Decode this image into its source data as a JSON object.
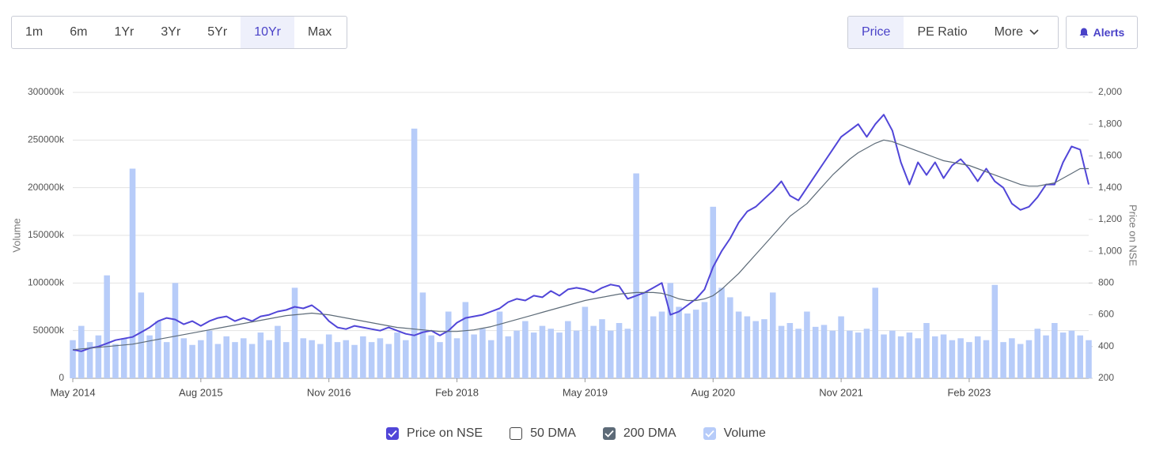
{
  "controls": {
    "ranges": [
      "1m",
      "6m",
      "1Yr",
      "3Yr",
      "5Yr",
      "10Yr",
      "Max"
    ],
    "active_range": "10Yr",
    "views": [
      "Price",
      "PE Ratio",
      "More"
    ],
    "active_view": "Price",
    "alerts": "Alerts"
  },
  "chart_data": {
    "type": "line",
    "ylabel": "Volume",
    "y2label": "Price on NSE",
    "x": [
      "2014-05",
      "2014-06",
      "2014-07",
      "2014-08",
      "2014-09",
      "2014-10",
      "2014-11",
      "2014-12",
      "2015-01",
      "2015-02",
      "2015-03",
      "2015-04",
      "2015-05",
      "2015-06",
      "2015-07",
      "2015-08",
      "2015-09",
      "2015-10",
      "2015-11",
      "2015-12",
      "2016-01",
      "2016-02",
      "2016-03",
      "2016-04",
      "2016-05",
      "2016-06",
      "2016-07",
      "2016-08",
      "2016-09",
      "2016-10",
      "2016-11",
      "2016-12",
      "2017-01",
      "2017-02",
      "2017-03",
      "2017-04",
      "2017-05",
      "2017-06",
      "2017-07",
      "2017-08",
      "2017-09",
      "2017-10",
      "2017-11",
      "2017-12",
      "2018-01",
      "2018-02",
      "2018-03",
      "2018-04",
      "2018-05",
      "2018-06",
      "2018-07",
      "2018-08",
      "2018-09",
      "2018-10",
      "2018-11",
      "2018-12",
      "2019-01",
      "2019-02",
      "2019-03",
      "2019-04",
      "2019-05",
      "2019-06",
      "2019-07",
      "2019-08",
      "2019-09",
      "2019-10",
      "2019-11",
      "2019-12",
      "2020-01",
      "2020-02",
      "2020-03",
      "2020-04",
      "2020-05",
      "2020-06",
      "2020-07",
      "2020-08",
      "2020-09",
      "2020-10",
      "2020-11",
      "2020-12",
      "2021-01",
      "2021-02",
      "2021-03",
      "2021-04",
      "2021-05",
      "2021-06",
      "2021-07",
      "2021-08",
      "2021-09",
      "2021-10",
      "2021-11",
      "2021-12",
      "2022-01",
      "2022-02",
      "2022-03",
      "2022-04",
      "2022-05",
      "2022-06",
      "2022-07",
      "2022-08",
      "2022-09",
      "2022-10",
      "2022-11",
      "2022-12",
      "2023-01",
      "2023-02",
      "2023-03",
      "2023-04",
      "2023-05",
      "2023-06",
      "2023-07",
      "2023-08",
      "2023-09",
      "2023-10",
      "2023-11",
      "2023-12",
      "2024-01",
      "2024-02",
      "2024-03",
      "2024-04"
    ],
    "xlim": [
      "2014-05",
      "2024-04"
    ],
    "xticks": [
      {
        "value": "2014-05",
        "label": "May 2014"
      },
      {
        "value": "2015-08",
        "label": "Aug 2015"
      },
      {
        "value": "2016-11",
        "label": "Nov 2016"
      },
      {
        "value": "2018-02",
        "label": "Feb 2018"
      },
      {
        "value": "2019-05",
        "label": "May 2019"
      },
      {
        "value": "2020-08",
        "label": "Aug 2020"
      },
      {
        "value": "2021-11",
        "label": "Nov 2021"
      },
      {
        "value": "2023-02",
        "label": "Feb 2023"
      }
    ],
    "ylim": [
      0,
      300000
    ],
    "yticks": [
      0,
      {
        "value": 50000,
        "label": "50000k"
      },
      {
        "value": 100000,
        "label": "100000k"
      },
      {
        "value": 150000,
        "label": "150000k"
      },
      {
        "value": 200000,
        "label": "200000k"
      },
      {
        "value": 250000,
        "label": "250000k"
      },
      {
        "value": 300000,
        "label": "300000k"
      }
    ],
    "y2lim": [
      200,
      2000
    ],
    "y2ticks": [
      200,
      400,
      600,
      800,
      {
        "value": 1000,
        "label": "1,000"
      },
      {
        "value": 1200,
        "label": "1,200"
      },
      {
        "value": 1400,
        "label": "1,400"
      },
      {
        "value": 1600,
        "label": "1,600"
      },
      {
        "value": 1800,
        "label": "1,800"
      },
      {
        "value": 2000,
        "label": "2,000"
      }
    ],
    "grid": true,
    "series": [
      {
        "name": "Price on NSE",
        "color": "#5146d8",
        "checked": true,
        "axis": "y2",
        "values": [
          380,
          370,
          390,
          400,
          420,
          440,
          450,
          460,
          490,
          520,
          560,
          580,
          570,
          540,
          560,
          530,
          560,
          580,
          590,
          560,
          580,
          560,
          590,
          600,
          620,
          630,
          650,
          640,
          660,
          620,
          560,
          520,
          510,
          530,
          520,
          510,
          500,
          520,
          500,
          480,
          470,
          490,
          500,
          470,
          500,
          550,
          580,
          590,
          600,
          620,
          640,
          680,
          700,
          690,
          720,
          710,
          750,
          720,
          760,
          770,
          760,
          740,
          770,
          790,
          780,
          700,
          720,
          740,
          770,
          800,
          600,
          620,
          660,
          700,
          760,
          900,
          1000,
          1080,
          1180,
          1250,
          1280,
          1330,
          1380,
          1440,
          1350,
          1320,
          1400,
          1480,
          1560,
          1640,
          1720,
          1760,
          1800,
          1720,
          1800,
          1860,
          1760,
          1560,
          1420,
          1560,
          1480,
          1560,
          1460,
          1540,
          1580,
          1520,
          1440,
          1520,
          1440,
          1400,
          1300,
          1260,
          1280,
          1340,
          1420,
          1420,
          1560,
          1660,
          1640,
          1420
        ]
      },
      {
        "name": "50 DMA",
        "color": "#9a8a6a",
        "checked": false
      },
      {
        "name": "200 DMA",
        "color": "#5d6b78",
        "checked": true,
        "axis": "y2",
        "values": [
          380,
          385,
          390,
          395,
          400,
          405,
          410,
          415,
          425,
          435,
          445,
          455,
          465,
          475,
          485,
          495,
          505,
          515,
          525,
          535,
          545,
          555,
          565,
          575,
          585,
          595,
          600,
          605,
          610,
          605,
          600,
          590,
          580,
          570,
          560,
          550,
          540,
          530,
          520,
          515,
          510,
          505,
          500,
          495,
          495,
          495,
          500,
          505,
          515,
          525,
          540,
          555,
          570,
          585,
          600,
          615,
          630,
          645,
          660,
          675,
          690,
          700,
          710,
          720,
          730,
          735,
          740,
          740,
          740,
          735,
          720,
          700,
          690,
          690,
          700,
          720,
          760,
          810,
          860,
          920,
          980,
          1040,
          1100,
          1160,
          1220,
          1260,
          1300,
          1360,
          1420,
          1480,
          1530,
          1580,
          1620,
          1650,
          1680,
          1700,
          1690,
          1670,
          1650,
          1630,
          1610,
          1590,
          1570,
          1560,
          1550,
          1540,
          1520,
          1500,
          1480,
          1460,
          1440,
          1420,
          1410,
          1410,
          1420,
          1430,
          1460,
          1490,
          1520,
          1520
        ]
      },
      {
        "name": "Volume",
        "color": "#b7ccf9",
        "checked": true,
        "type": "bar",
        "values": [
          40000,
          55000,
          38000,
          45000,
          108000,
          36000,
          42000,
          220000,
          90000,
          45000,
          60000,
          38000,
          100000,
          42000,
          35000,
          40000,
          50000,
          36000,
          44000,
          38000,
          42000,
          36000,
          48000,
          40000,
          55000,
          38000,
          95000,
          42000,
          40000,
          36000,
          46000,
          38000,
          40000,
          35000,
          44000,
          38000,
          42000,
          36000,
          48000,
          40000,
          262000,
          90000,
          45000,
          38000,
          70000,
          42000,
          80000,
          46000,
          52000,
          40000,
          70000,
          44000,
          50000,
          60000,
          48000,
          55000,
          52000,
          48000,
          60000,
          50000,
          75000,
          55000,
          62000,
          50000,
          58000,
          52000,
          215000,
          90000,
          65000,
          70000,
          100000,
          75000,
          68000,
          72000,
          80000,
          180000,
          95000,
          85000,
          70000,
          65000,
          60000,
          62000,
          90000,
          55000,
          58000,
          52000,
          70000,
          54000,
          56000,
          50000,
          65000,
          50000,
          48000,
          52000,
          95000,
          46000,
          50000,
          44000,
          48000,
          42000,
          58000,
          44000,
          46000,
          40000,
          42000,
          38000,
          44000,
          40000,
          98000,
          38000,
          42000,
          36000,
          40000,
          52000,
          45000,
          58000,
          48000,
          50000,
          45000,
          40000
        ]
      }
    ]
  }
}
